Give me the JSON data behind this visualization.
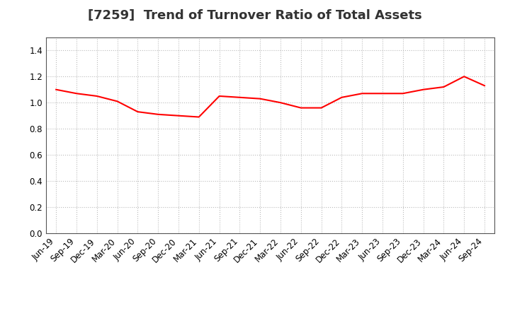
{
  "title": "[7259]  Trend of Turnover Ratio of Total Assets",
  "x_labels": [
    "Jun-19",
    "Sep-19",
    "Dec-19",
    "Mar-20",
    "Jun-20",
    "Sep-20",
    "Dec-20",
    "Mar-21",
    "Jun-21",
    "Sep-21",
    "Dec-21",
    "Mar-22",
    "Jun-22",
    "Sep-22",
    "Dec-22",
    "Mar-23",
    "Jun-23",
    "Sep-23",
    "Dec-23",
    "Mar-24",
    "Jun-24",
    "Sep-24"
  ],
  "values": [
    1.1,
    1.07,
    1.05,
    1.01,
    0.93,
    0.91,
    0.9,
    0.89,
    1.05,
    1.04,
    1.03,
    1.0,
    0.96,
    0.96,
    1.04,
    1.07,
    1.07,
    1.07,
    1.1,
    1.12,
    1.2,
    1.13
  ],
  "line_color": "#ff0000",
  "line_width": 1.5,
  "ylim": [
    0.0,
    1.5
  ],
  "yticks": [
    0.0,
    0.2,
    0.4,
    0.6,
    0.8,
    1.0,
    1.2,
    1.4
  ],
  "grid_color": "#bbbbbb",
  "background_color": "#ffffff",
  "title_fontsize": 13,
  "tick_fontsize": 8.5
}
